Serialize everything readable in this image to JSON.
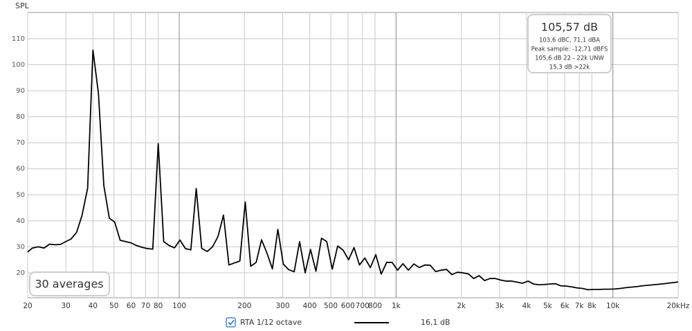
{
  "chart_data": {
    "type": "line",
    "y_label": "SPL",
    "log_x": true,
    "grid": true,
    "xlim": [
      20,
      20000
    ],
    "ylim": [
      10.4,
      120.1
    ],
    "yticks": [
      20,
      30,
      40,
      50,
      60,
      70,
      80,
      90,
      100,
      110
    ],
    "xticks": [
      20,
      30,
      40,
      50,
      60,
      70,
      80,
      100,
      200,
      300,
      400,
      500,
      600,
      700,
      800,
      {
        "value": 1000,
        "label": "1k"
      },
      {
        "value": 2000,
        "label": "2k"
      },
      {
        "value": 3000,
        "label": "3k"
      },
      {
        "value": 4000,
        "label": "4k"
      },
      {
        "value": 5000,
        "label": "5k"
      },
      {
        "value": 6000,
        "label": "6k"
      },
      {
        "value": 7000,
        "label": "7k"
      },
      {
        "value": 8000,
        "label": "8k"
      },
      {
        "value": 10000,
        "label": "10k"
      },
      {
        "value": 20000,
        "label": "20kHz"
      }
    ],
    "x": [
      20,
      21,
      22.4,
      23.8,
      25.2,
      26.7,
      28.3,
      30,
      31.7,
      33.6,
      35.6,
      37.8,
      40,
      42.4,
      44.9,
      47.6,
      50.4,
      53.4,
      56.6,
      60,
      63.5,
      67.3,
      71.3,
      75.5,
      80,
      84.8,
      89.8,
      95.1,
      100.8,
      106.8,
      113.1,
      119.8,
      126.9,
      134.5,
      142.5,
      151,
      160,
      169.5,
      179.6,
      190.3,
      201.6,
      213.6,
      226.3,
      239.7,
      254,
      269,
      285,
      302,
      320,
      339,
      359,
      381,
      403,
      427,
      453,
      479,
      508,
      538,
      570,
      604,
      640,
      678,
      718,
      761,
      806,
      854,
      905,
      959,
      1016,
      1076,
      1140,
      1208,
      1280,
      1356,
      1437,
      1522,
      1613,
      1709,
      1810,
      1918,
      2032,
      2153,
      2281,
      2416,
      2560,
      2712,
      2873,
      3044,
      3225,
      3417,
      3620,
      3836,
      4064,
      4305,
      4561,
      4833,
      5120,
      5425,
      5747,
      6089,
      6451,
      6834,
      7241,
      7671,
      8127,
      8611,
      9123,
      9665,
      10240,
      10849,
      11494,
      12177,
      12901,
      13668,
      14482,
      15343,
      16255,
      17222,
      18246,
      19331,
      20000
    ],
    "series": [
      {
        "name": "RTA 1/12 octave",
        "legend_value": "16,1 dB",
        "color": "#000000",
        "values": [
          28,
          29.5,
          30,
          29.5,
          31,
          30.8,
          30.9,
          32,
          33,
          35.5,
          42,
          52.5,
          105.6,
          89,
          53.5,
          41,
          39.5,
          32.5,
          32,
          31.5,
          30.5,
          29.8,
          29.3,
          29.1,
          69.7,
          32,
          30.5,
          29.6,
          32.6,
          29.3,
          28.8,
          52.4,
          29.4,
          28.2,
          30,
          34,
          42.2,
          23,
          23.8,
          24.5,
          47.2,
          22.5,
          24,
          32.7,
          27.5,
          21.5,
          36.7,
          23.3,
          21.2,
          20.4,
          32,
          20,
          29,
          20.6,
          33.3,
          32,
          21.4,
          30.3,
          28.7,
          25,
          29.7,
          23,
          25.7,
          22,
          27,
          19.5,
          24,
          24,
          21,
          23.5,
          21,
          23.4,
          22,
          23,
          22.9,
          20.5,
          21,
          21.3,
          19.3,
          20.2,
          20,
          19.6,
          17.8,
          18.9,
          17,
          17.8,
          17.8,
          17.2,
          16.8,
          16.8,
          16.4,
          16,
          16.8,
          15.7,
          15.4,
          15.5,
          15.7,
          15.8,
          15,
          14.9,
          14.6,
          14.2,
          14,
          13.5,
          13.6,
          13.6,
          13.7,
          13.7,
          13.8,
          14,
          14.3,
          14.5,
          14.7,
          15,
          15.2,
          15.4,
          15.6,
          15.8,
          16.1,
          16.3,
          16.5
        ]
      }
    ],
    "info_box": [
      "105,57 dB",
      "103,6 dBC, 71,1 dBA",
      "Peak sample: -12,71 dBFS",
      "105,6 dB 22 - 22k UNW",
      "15,3 dB >22k"
    ],
    "averages": "30 averages"
  }
}
